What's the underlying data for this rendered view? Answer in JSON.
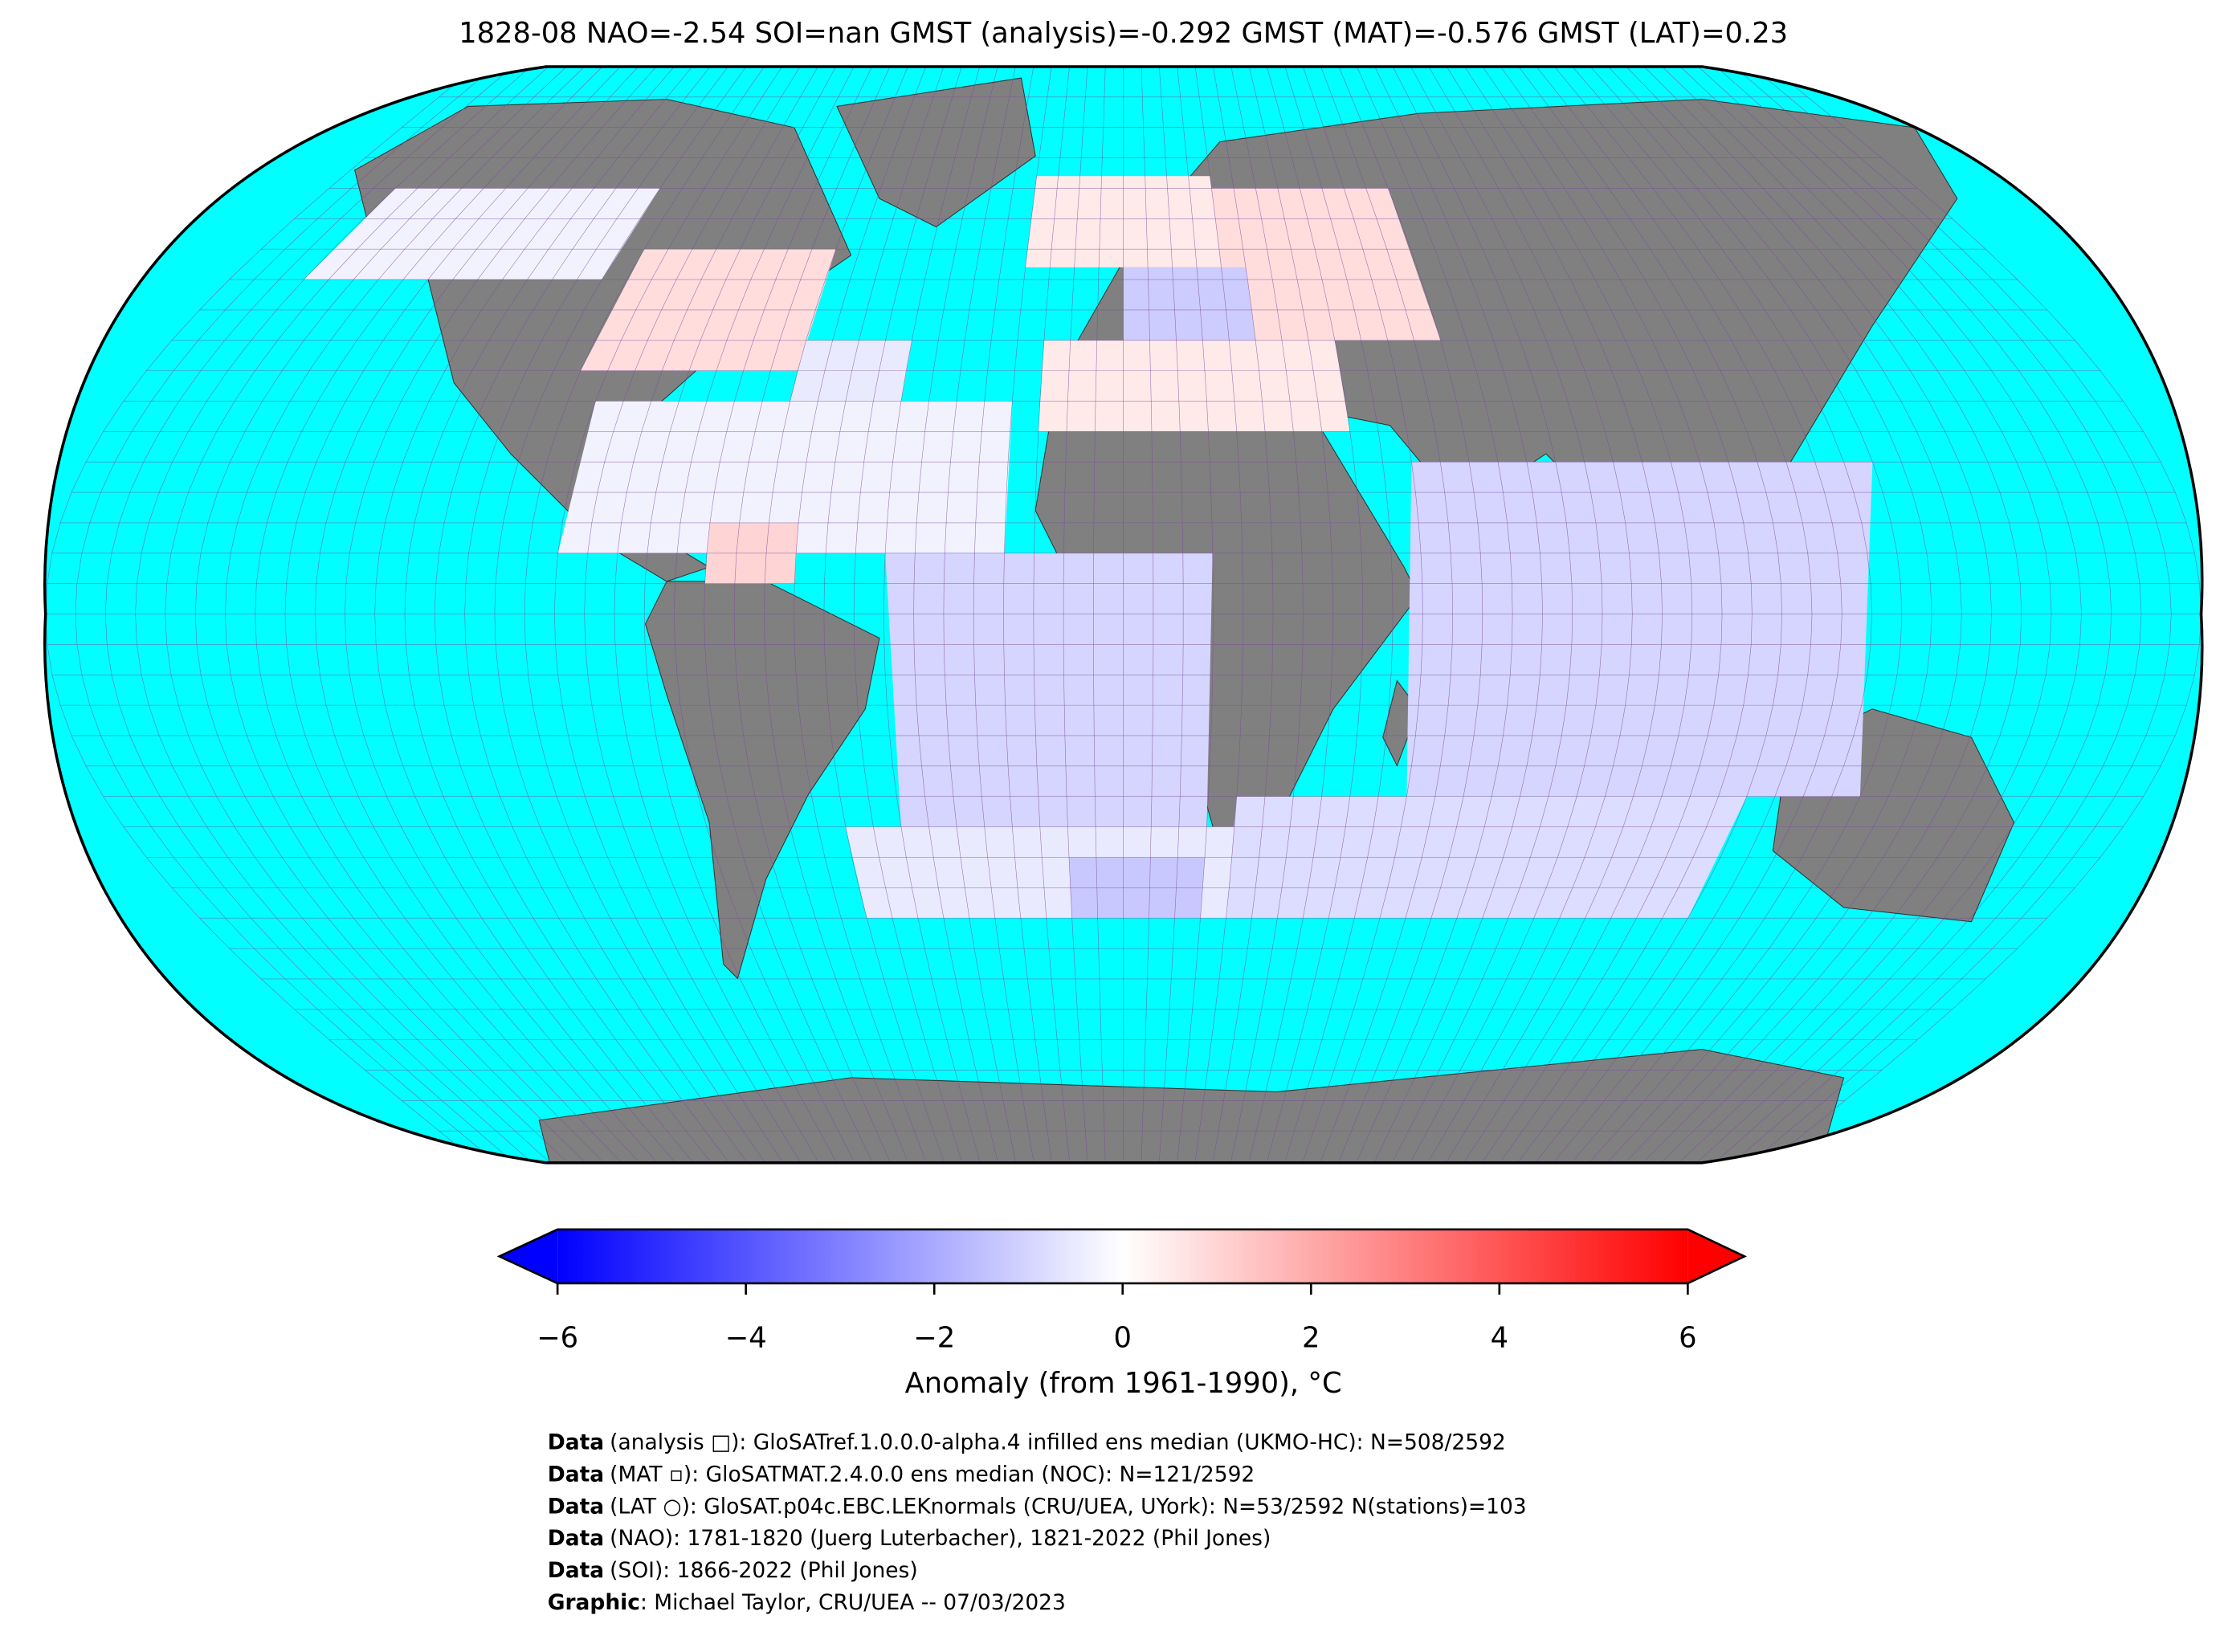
{
  "title": "1828-08 NAO=-2.54 SOI=nan GMST (analysis)=-0.292 GMST (MAT)=-0.576 GMST (LAT)=0.23",
  "map": {
    "projection": "robinson",
    "cells": [
      {
        "lon": [
          -165,
          -105
        ],
        "lat": [
          55,
          70
        ],
        "anomaly": -0.3
      },
      {
        "lon": [
          -100,
          -60
        ],
        "lat": [
          40,
          60
        ],
        "anomaly": 0.8
      },
      {
        "lon": [
          -60,
          -40
        ],
        "lat": [
          35,
          45
        ],
        "anomaly": -0.5
      },
      {
        "lon": [
          -95,
          -20
        ],
        "lat": [
          10,
          35
        ],
        "anomaly": -0.3
      },
      {
        "lon": [
          -70,
          -55
        ],
        "lat": [
          5,
          15
        ],
        "anomaly": 1.0
      },
      {
        "lon": [
          -40,
          15
        ],
        "lat": [
          -35,
          10
        ],
        "anomaly": -1.0
      },
      {
        "lon": [
          -50,
          30
        ],
        "lat": [
          -50,
          -35
        ],
        "anomaly": -0.5
      },
      {
        "lon": [
          -10,
          15
        ],
        "lat": [
          -50,
          -40
        ],
        "anomaly": -1.3
      },
      {
        "lon": [
          -20,
          20
        ],
        "lat": [
          57,
          72
        ],
        "anomaly": 0.5
      },
      {
        "lon": [
          20,
          60
        ],
        "lat": [
          45,
          70
        ],
        "anomaly": 0.8
      },
      {
        "lon": [
          -15,
          40
        ],
        "lat": [
          30,
          45
        ],
        "anomaly": 0.5
      },
      {
        "lon": [
          0,
          25
        ],
        "lat": [
          45,
          57
        ],
        "anomaly": -1.2
      },
      {
        "lon": [
          50,
          130
        ],
        "lat": [
          -30,
          25
        ],
        "anomaly": -1.0
      },
      {
        "lon": [
          20,
          110
        ],
        "lat": [
          -50,
          -30
        ],
        "anomaly": -0.8
      }
    ]
  },
  "colorbar": {
    "lim": [
      -6,
      6
    ],
    "colors": [
      "#0000ff",
      "#ffffff",
      "#ff0000"
    ],
    "extend": "both",
    "ticks": [
      {
        "value": -6,
        "label": "−6"
      },
      {
        "value": -4,
        "label": "−4"
      },
      {
        "value": -2,
        "label": "−2"
      },
      0,
      2,
      4,
      6
    ],
    "label": "Anomaly (from 1961-1990), °C"
  },
  "footer": [
    {
      "bold": "Data",
      "text": "(analysis □): GloSATref.1.0.0.0-alpha.4 infilled ens median (UKMO-HC): N=508/2592"
    },
    {
      "bold": "Data",
      "text": "(MAT ▫): GloSATMAT.2.4.0.0 ens median (NOC): N=121/2592"
    },
    {
      "bold": "Data",
      "text": "(LAT ○): GloSAT.p04c.EBC.LEKnormals (CRU/UEA, UYork): N=53/2592 N(stations)=103"
    },
    {
      "bold": "Data",
      "text": "(NAO): 1781-1820 (Juerg Luterbacher), 1821-2022 (Phil Jones)"
    },
    {
      "bold": "Data",
      "text": "(SOI): 1866-2022 (Phil Jones)"
    },
    {
      "bold": "Graphic",
      "text": ": Michael Taylor, CRU/UEA -- 07/03/2023"
    }
  ]
}
